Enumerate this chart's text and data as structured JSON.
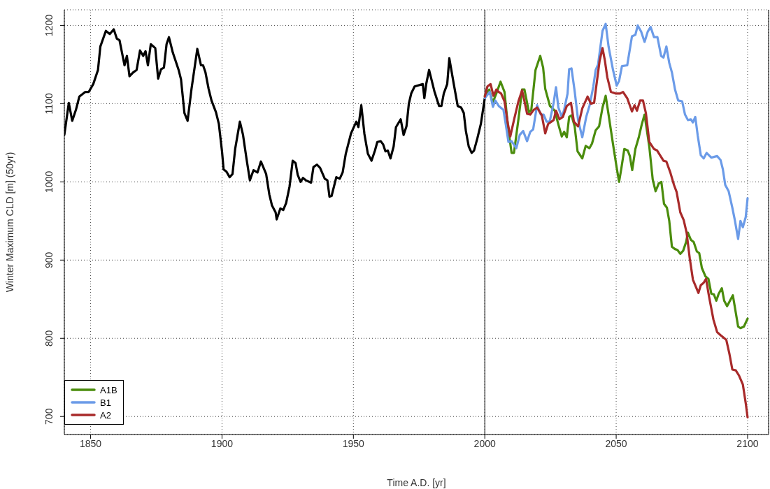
{
  "chart_data": {
    "type": "line",
    "xlabel": "Time A.D. [yr]",
    "ylabel": "Winter Maximum CLD [m] (50yr)",
    "xlim": [
      1840,
      2108
    ],
    "ylim": [
      677,
      1220
    ],
    "xticks": [
      1850,
      1900,
      1950,
      2000,
      2050,
      2100
    ],
    "yticks": [
      700,
      800,
      900,
      1000,
      1100,
      1200
    ],
    "grid": true,
    "legend": "bottom left",
    "line_style": "solid",
    "marker": "none",
    "ref_lines": [
      {
        "axis": "x",
        "value": 2000,
        "color": "#000000",
        "line_style": "solid"
      }
    ],
    "series": [
      {
        "color": "#000000",
        "x": [
          1840,
          1841.7,
          1843,
          1844.4,
          1845.7,
          1848,
          1849.3,
          1851,
          1852.8,
          1853.7,
          1855.8,
          1857.3,
          1858.8,
          1860,
          1861,
          1862.9,
          1863.8,
          1864.8,
          1866.2,
          1867.5,
          1868.8,
          1870,
          1870.9,
          1871.8,
          1872.9,
          1874.6,
          1875.7,
          1876.8,
          1877.9,
          1878.9,
          1879.8,
          1881.3,
          1883.5,
          1884.4,
          1885.7,
          1886.9,
          1888.4,
          1890.6,
          1892,
          1892.8,
          1893.7,
          1894.9,
          1896,
          1897.7,
          1898.8,
          1900,
          1900.6,
          1901.7,
          1902.9,
          1904,
          1905,
          1906.8,
          1908,
          1909.3,
          1910.6,
          1912,
          1913.5,
          1914.8,
          1916.8,
          1918,
          1919,
          1920.4,
          1920.8,
          1922.2,
          1923.3,
          1924.4,
          1925.7,
          1926.9,
          1928,
          1928.8,
          1929.9,
          1930.8,
          1931.9,
          1933.9,
          1934.8,
          1936.1,
          1937.3,
          1939.1,
          1940.1,
          1940.9,
          1941.7,
          1943.5,
          1944.8,
          1945.9,
          1947.1,
          1949.1,
          1951.1,
          1951.9,
          1953,
          1954.2,
          1955.5,
          1956.9,
          1958.2,
          1959.1,
          1960.4,
          1961.3,
          1962.2,
          1963.1,
          1964.1,
          1965.3,
          1966.2,
          1968,
          1969.1,
          1970.2,
          1971.1,
          1972,
          1973.3,
          1976.4,
          1977,
          1977.7,
          1978.8,
          1980.8,
          1982.6,
          1983.5,
          1984.4,
          1985.7,
          1986.5,
          1988.2,
          1989.7,
          1991,
          1992,
          1992.8,
          1993.9,
          1995,
          1995.9,
          1997.2,
          1998.5,
          2000
        ],
        "values": [
          1060,
          1101,
          1078,
          1092,
          1109,
          1115,
          1115,
          1125,
          1143,
          1173,
          1193,
          1189,
          1195,
          1183,
          1181,
          1149,
          1161,
          1135,
          1140,
          1143,
          1168,
          1161,
          1167,
          1149,
          1176,
          1171,
          1132,
          1144,
          1146,
          1176,
          1185,
          1165,
          1143,
          1131,
          1088,
          1078,
          1119,
          1170,
          1149,
          1149,
          1140,
          1119,
          1104,
          1089,
          1074,
          1039,
          1016,
          1013,
          1006,
          1010,
          1042,
          1077,
          1060,
          1030,
          1002,
          1015,
          1012,
          1026,
          1010,
          984,
          970,
          961,
          952,
          966,
          964,
          973,
          994,
          1027,
          1024,
          1009,
          1000,
          1005,
          1002,
          999,
          1019,
          1022,
          1018,
          1004,
          1002,
          981,
          982,
          1006,
          1004,
          1012,
          1036,
          1062,
          1077,
          1070,
          1098,
          1061,
          1036,
          1027,
          1040,
          1051,
          1052,
          1048,
          1039,
          1040,
          1030,
          1045,
          1070,
          1080,
          1060,
          1071,
          1100,
          1113,
          1122,
          1125,
          1107,
          1125,
          1143,
          1116,
          1097,
          1097,
          1113,
          1125,
          1158,
          1125,
          1097,
          1095,
          1088,
          1065,
          1045,
          1037,
          1040,
          1056,
          1074,
          1107
        ]
      },
      {
        "name": "A1B",
        "color": "#4a8c0c",
        "x": [
          2000,
          2001.7,
          2003,
          2004.6,
          2006,
          2007.5,
          2008.8,
          2010.2,
          2011.1,
          2012.8,
          2014.2,
          2015.1,
          2016.8,
          2017.7,
          2019.3,
          2021.1,
          2022.2,
          2023,
          2024.8,
          2026.6,
          2028.2,
          2029.3,
          2030.2,
          2031.2,
          2032.1,
          2033,
          2034.2,
          2035.3,
          2037.1,
          2038.4,
          2039.8,
          2040.8,
          2042.2,
          2043.5,
          2044.8,
          2046,
          2047.1,
          2048.8,
          2050.2,
          2051.1,
          2052,
          2053.1,
          2054.4,
          2055.2,
          2056.1,
          2057.3,
          2058.6,
          2059.7,
          2060.8,
          2062.6,
          2063.9,
          2065,
          2066.2,
          2067.2,
          2068.2,
          2069.3,
          2070.2,
          2071.2,
          2072.4,
          2073.3,
          2074.4,
          2075.5,
          2076.6,
          2077.3,
          2078.4,
          2079.5,
          2080.7,
          2081.6,
          2082.6,
          2084,
          2085.1,
          2086.2,
          2087.2,
          2088.1,
          2089,
          2090.2,
          2091.1,
          2092.2,
          2093.3,
          2094.4,
          2095.5,
          2096.4,
          2097.3,
          2098.6,
          2100
        ],
        "values": [
          1110,
          1118,
          1101,
          1115,
          1128,
          1115,
          1071,
          1037,
          1037,
          1080,
          1118,
          1118,
          1089,
          1092,
          1143,
          1161,
          1146,
          1119,
          1097,
          1091,
          1071,
          1058,
          1064,
          1057,
          1083,
          1085,
          1071,
          1039,
          1030,
          1046,
          1043,
          1049,
          1066,
          1071,
          1095,
          1110,
          1086,
          1048,
          1018,
          1000,
          1018,
          1042,
          1040,
          1033,
          1015,
          1042,
          1057,
          1073,
          1086,
          1045,
          1003,
          988,
          998,
          1000,
          972,
          967,
          950,
          917,
          914,
          913,
          908,
          912,
          923,
          935,
          926,
          923,
          911,
          909,
          890,
          879,
          876,
          857,
          856,
          848,
          857,
          864,
          848,
          841,
          848,
          855,
          833,
          815,
          813,
          815,
          825
        ]
      },
      {
        "name": "B1",
        "color": "#6b9be8",
        "x": [
          2000,
          2001.9,
          2003.1,
          2004,
          2005.3,
          2007.1,
          2008,
          2009,
          2010.2,
          2012,
          2013.3,
          2014.6,
          2016.1,
          2017.3,
          2018.4,
          2019.9,
          2021.3,
          2022.4,
          2023.5,
          2024.7,
          2026.2,
          2027.1,
          2028,
          2029.3,
          2030.2,
          2031.5,
          2032.1,
          2033,
          2034.2,
          2035.5,
          2037.1,
          2038.6,
          2039.9,
          2041.3,
          2042.2,
          2043.1,
          2044.8,
          2046,
          2047.1,
          2048.8,
          2050.2,
          2051.1,
          2052.2,
          2054.2,
          2056,
          2057.3,
          2058.2,
          2059.5,
          2060.8,
          2062,
          2063.1,
          2064.4,
          2065.7,
          2067.1,
          2068,
          2069.1,
          2070.2,
          2071.2,
          2072.4,
          2073.6,
          2075.1,
          2076.2,
          2077.3,
          2078.4,
          2079.2,
          2080.1,
          2081,
          2082.2,
          2083.3,
          2084.4,
          2086.2,
          2088.4,
          2089.7,
          2090.6,
          2091.5,
          2092.8,
          2094.2,
          2095.1,
          2096.4,
          2097.3,
          2098.2,
          2099.3,
          2100
        ],
        "values": [
          1107,
          1115,
          1096,
          1104,
          1097,
          1092,
          1073,
          1051,
          1052,
          1043,
          1060,
          1065,
          1052,
          1064,
          1067,
          1098,
          1086,
          1086,
          1077,
          1077,
          1101,
          1121,
          1095,
          1083,
          1092,
          1113,
          1144,
          1145,
          1116,
          1079,
          1057,
          1083,
          1098,
          1122,
          1143,
          1150,
          1193,
          1202,
          1173,
          1143,
          1123,
          1129,
          1148,
          1149,
          1186,
          1188,
          1200,
          1192,
          1179,
          1192,
          1198,
          1185,
          1185,
          1161,
          1159,
          1173,
          1152,
          1140,
          1118,
          1104,
          1103,
          1086,
          1079,
          1080,
          1076,
          1083,
          1060,
          1034,
          1030,
          1037,
          1031,
          1033,
          1028,
          1016,
          996,
          988,
          967,
          952,
          927,
          950,
          942,
          955,
          979
        ]
      },
      {
        "name": "A2",
        "color": "#a82a2a",
        "x": [
          2000,
          2001,
          2002.2,
          2003.3,
          2004.4,
          2005.3,
          2006.2,
          2007.5,
          2008.8,
          2009.7,
          2011.1,
          2012.8,
          2014.2,
          2015.1,
          2016.1,
          2017.3,
          2018.6,
          2019.9,
          2021.7,
          2023,
          2024.1,
          2026.2,
          2027.1,
          2028.4,
          2029.7,
          2031.2,
          2032.8,
          2033.9,
          2035.5,
          2037.1,
          2039.1,
          2040.4,
          2041.6,
          2042.8,
          2043.7,
          2044.8,
          2045.7,
          2046.6,
          2048,
          2049.7,
          2051.5,
          2052.6,
          2054.2,
          2056,
          2057,
          2057.9,
          2059.1,
          2060.2,
          2061.3,
          2062.6,
          2064.4,
          2065.6,
          2068,
          2069.1,
          2070.6,
          2072,
          2073,
          2074.4,
          2075.7,
          2076.8,
          2078,
          2079.2,
          2081.3,
          2082.2,
          2083.3,
          2084.2,
          2085.3,
          2087,
          2088.4,
          2089.7,
          2091.9,
          2093.1,
          2094.2,
          2095.5,
          2096.8,
          2098.2,
          2099.3,
          2100
        ],
        "values": [
          1109,
          1122,
          1125,
          1110,
          1118,
          1115,
          1113,
          1103,
          1074,
          1058,
          1079,
          1103,
          1117,
          1103,
          1087,
          1086,
          1092,
          1095,
          1085,
          1062,
          1074,
          1079,
          1091,
          1080,
          1083,
          1097,
          1101,
          1077,
          1071,
          1094,
          1109,
          1100,
          1101,
          1132,
          1155,
          1171,
          1155,
          1134,
          1115,
          1113,
          1113,
          1115,
          1107,
          1090,
          1098,
          1091,
          1104,
          1104,
          1088,
          1051,
          1042,
          1040,
          1027,
          1026,
          1012,
          996,
          987,
          961,
          951,
          935,
          902,
          875,
          858,
          868,
          871,
          876,
          854,
          824,
          808,
          804,
          798,
          780,
          760,
          759,
          752,
          741,
          717,
          699
        ]
      }
    ]
  }
}
